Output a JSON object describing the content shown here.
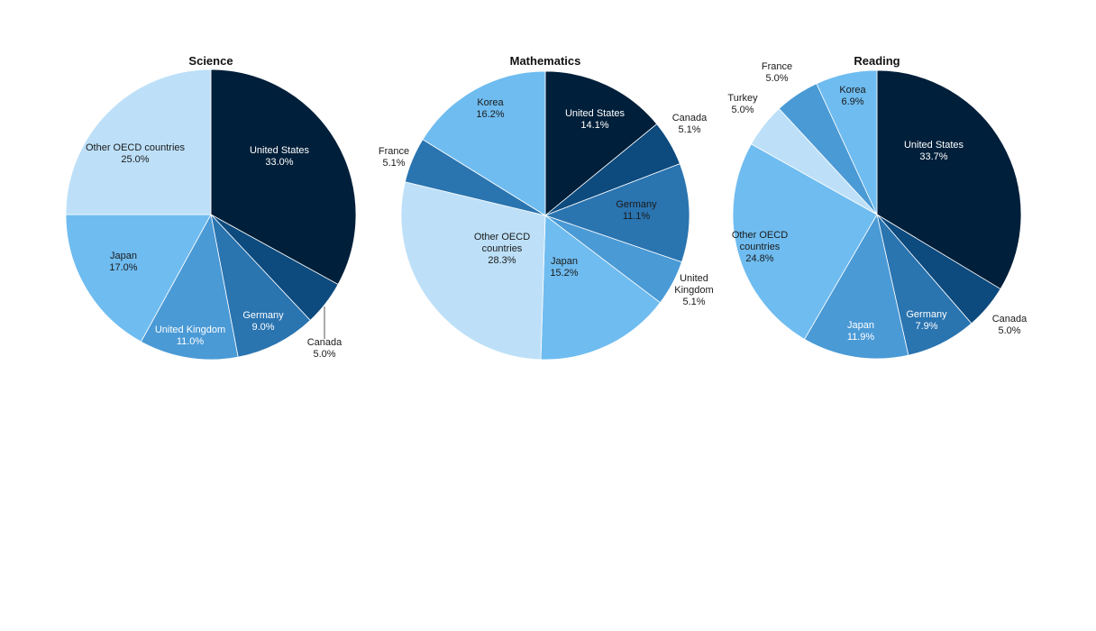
{
  "chart_data": [
    {
      "type": "pie",
      "title": "Science",
      "slices": [
        {
          "label": "United States",
          "value": 33.0,
          "display": "33.0%",
          "color": "#001f3a"
        },
        {
          "label": "Canada",
          "value": 5.0,
          "display": "5.0%",
          "color": "#0d4a7e"
        },
        {
          "label": "Germany",
          "value": 9.0,
          "display": "9.0%",
          "color": "#2a74b0"
        },
        {
          "label": "United Kingdom",
          "value": 11.0,
          "display": "11.0%",
          "color": "#4a9ad6"
        },
        {
          "label": "Japan",
          "value": 17.0,
          "display": "17.0%",
          "color": "#6fbcf0"
        },
        {
          "label": "Other OECD countries",
          "value": 25.0,
          "display": "25.0%",
          "color": "#bde0f8"
        }
      ]
    },
    {
      "type": "pie",
      "title": "Mathematics",
      "slices": [
        {
          "label": "United States",
          "value": 14.1,
          "display": "14.1%",
          "color": "#001f3a"
        },
        {
          "label": "Canada",
          "value": 5.1,
          "display": "5.1%",
          "color": "#0d4a7e"
        },
        {
          "label": "Germany",
          "value": 11.1,
          "display": "11.1%",
          "color": "#2a74b0"
        },
        {
          "label": "United Kingdom",
          "value": 5.1,
          "display": "5.1%",
          "color": "#4a9ad6"
        },
        {
          "label": "Japan",
          "value": 15.2,
          "display": "15.2%",
          "color": "#6fbcf0"
        },
        {
          "label": "Other OECD countries",
          "value": 28.3,
          "display": "28.3%",
          "color": "#bde0f8"
        },
        {
          "label": "France",
          "value": 5.1,
          "display": "5.1%",
          "color": "#2a74b0"
        },
        {
          "label": "Korea",
          "value": 16.2,
          "display": "16.2%",
          "color": "#6fbcf0"
        }
      ]
    },
    {
      "type": "pie",
      "title": "Reading",
      "slices": [
        {
          "label": "United States",
          "value": 33.7,
          "display": "33.7%",
          "color": "#001f3a"
        },
        {
          "label": "Canada",
          "value": 5.0,
          "display": "5.0%",
          "color": "#0d4a7e"
        },
        {
          "label": "Germany",
          "value": 7.9,
          "display": "7.9%",
          "color": "#2a74b0"
        },
        {
          "label": "Japan",
          "value": 11.9,
          "display": "11.9%",
          "color": "#4a9ad6"
        },
        {
          "label": "Other OECD countries",
          "value": 24.8,
          "display": "24.8%",
          "color": "#6fbcf0"
        },
        {
          "label": "Turkey",
          "value": 5.0,
          "display": "5.0%",
          "color": "#bde0f8"
        },
        {
          "label": "France",
          "value": 5.0,
          "display": "5.0%",
          "color": "#4a9ad6"
        },
        {
          "label": "Korea",
          "value": 6.9,
          "display": "6.9%",
          "color": "#6fbcf0"
        }
      ]
    }
  ]
}
